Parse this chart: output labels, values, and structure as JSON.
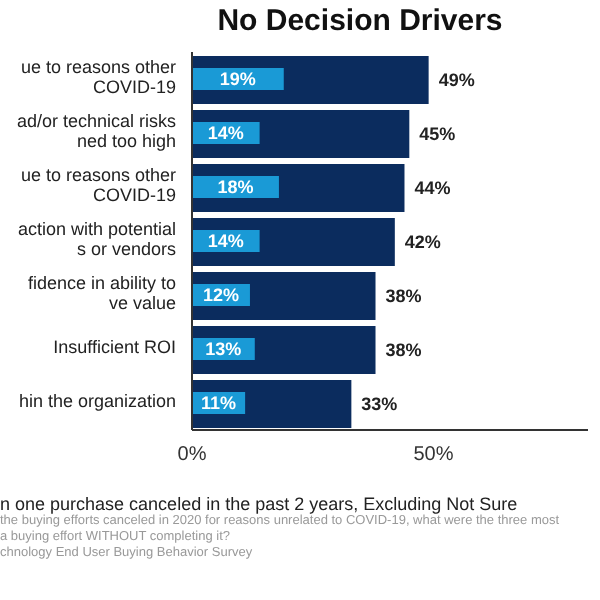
{
  "chart_data": {
    "type": "bar",
    "orientation": "horizontal",
    "title": "No Decision Drivers",
    "subtitle": "n one purchase canceled in the past 2 years, Excluding Not Sure",
    "categories": [
      "ue to reasons other COVID-19",
      "ad/or technical risks ned too high",
      "ue to reasons other COVID-19",
      "action with potential s or vendors",
      "fidence in ability to ve value",
      "Insufficient ROI",
      "hin the organization"
    ],
    "series": [
      {
        "color": "#0b2c5e",
        "values": [
          49,
          45,
          44,
          42,
          38,
          38,
          33
        ],
        "value_labels": [
          "49%",
          "45%",
          "44%",
          "42%",
          "38%",
          "38%",
          "33%"
        ]
      },
      {
        "color": "#1a9ad6",
        "values": [
          19,
          14,
          18,
          14,
          12,
          13,
          11
        ],
        "value_labels": [
          "19%",
          "14%",
          "18%",
          "14%",
          "12%",
          "13%",
          "11%"
        ]
      }
    ],
    "xlim": [
      0,
      82
    ],
    "xticks": [
      {
        "value": 0,
        "label": "0%"
      },
      {
        "value": 50,
        "label": "50%"
      }
    ],
    "grid": false,
    "legend": false,
    "annotations": [
      "the buying efforts canceled in 2020 for reasons unrelated to COVID-19, what were the three most",
      "a buying effort WITHOUT completing it?",
      "chnology End User Buying Behavior Survey"
    ]
  }
}
